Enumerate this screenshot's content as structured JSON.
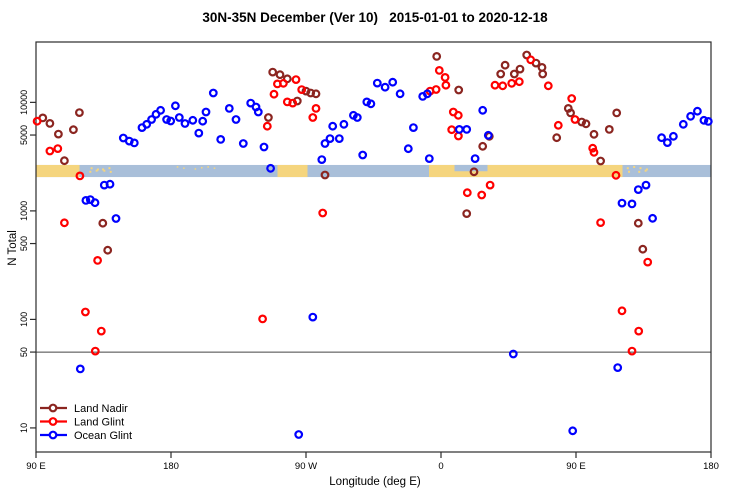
{
  "title": "30N-35N December (Ver 10)   2015-01-01 to 2020-12-18",
  "chart_data": {
    "type": "scatter",
    "title": "30N-35N December (Ver 10)   2015-01-01 to 2020-12-18",
    "xlabel": "Longitude (deg E)",
    "ylabel": "N Total",
    "x_axis": {
      "min": 90,
      "max": 540,
      "ticks": [
        90,
        180,
        270,
        360,
        450,
        540
      ],
      "tick_labels": [
        "90 E",
        "180",
        "90 W",
        "0",
        "90 E",
        "180"
      ],
      "note": "longitude axis wraps eastward: 90E - 180 - 90W - 0 - 90E - 180"
    },
    "y_axis": {
      "scale": "log",
      "min": 6,
      "max": 36000,
      "ticks": [
        10,
        50,
        100,
        500,
        1000,
        5000,
        10000
      ],
      "tick_labels": [
        "10",
        "50",
        "100",
        "500",
        "1000",
        "5000",
        "10000"
      ]
    },
    "reference_line_y": 50,
    "map_band": {
      "comment": "strip showing land(tan)/ocean(blue) vs longitude, drawn across the plot near N=2100-2650",
      "n_top": 2650,
      "n_bottom": 2050,
      "ocean_color": "#a9bfd9",
      "land_color": "#f5d57e",
      "land_segments_deg": [
        [
          90,
          119
        ],
        [
          251,
          271
        ],
        [
          352,
          481
        ]
      ],
      "mediterranean_notch_deg": [
        369,
        391
      ],
      "island_specks": [
        {
          "range": [
            123,
            142
          ],
          "density": 0.55,
          "size": 2
        },
        {
          "range": [
            183,
            215
          ],
          "density": 0.28,
          "size": 1.5
        },
        {
          "range": [
            483,
            499
          ],
          "density": 0.55,
          "size": 2
        }
      ]
    },
    "series": [
      {
        "name": "Land Nadir",
        "color": "#8b2520",
        "points": [
          [
            94.5,
            7200
          ],
          [
            99.3,
            6400
          ],
          [
            104.9,
            5100
          ],
          [
            114.9,
            5600
          ],
          [
            118.9,
            8050
          ],
          [
            108.9,
            2900
          ],
          [
            134.5,
            770
          ],
          [
            137.8,
            434
          ],
          [
            244.9,
            7250
          ],
          [
            247.8,
            19000
          ],
          [
            252.7,
            18000
          ],
          [
            257.5,
            16500
          ],
          [
            264.2,
            10300
          ],
          [
            270,
            12700
          ],
          [
            273.1,
            12200
          ],
          [
            276.7,
            12000
          ],
          [
            282.7,
            2140
          ],
          [
            357.1,
            26500
          ],
          [
            371.8,
            13000
          ],
          [
            387.8,
            3940
          ],
          [
            392.2,
            4870
          ],
          [
            382,
            2290
          ],
          [
            377.1,
            945
          ],
          [
            399.8,
            18250
          ],
          [
            402.7,
            22000
          ],
          [
            408.9,
            18250
          ],
          [
            412.7,
            20250
          ],
          [
            417.1,
            27300
          ],
          [
            423.3,
            23000
          ],
          [
            427.3,
            21000
          ],
          [
            427.8,
            18250
          ],
          [
            437.1,
            4730
          ],
          [
            444.9,
            8800
          ],
          [
            446.4,
            8000
          ],
          [
            453.8,
            6600
          ],
          [
            456.7,
            6350
          ],
          [
            462,
            5080
          ],
          [
            466.4,
            2880
          ],
          [
            472.2,
            5630
          ],
          [
            477.1,
            8000
          ],
          [
            491.5,
            770
          ],
          [
            494.5,
            444
          ]
        ]
      },
      {
        "name": "Land Glint",
        "color": "#ff0000",
        "points": [
          [
            90.7,
            6700
          ],
          [
            99.3,
            3560
          ],
          [
            104.5,
            3750
          ],
          [
            108.9,
            777
          ],
          [
            119.3,
            2100
          ],
          [
            122.9,
            117
          ],
          [
            129.5,
            51
          ],
          [
            131.1,
            350
          ],
          [
            133.5,
            78
          ],
          [
            241.1,
            101
          ],
          [
            244.2,
            6030
          ],
          [
            248.7,
            11900
          ],
          [
            250.9,
            14800
          ],
          [
            254.9,
            15000
          ],
          [
            257.5,
            10100
          ],
          [
            261.1,
            9850
          ],
          [
            263.3,
            16200
          ],
          [
            267.1,
            13100
          ],
          [
            274.5,
            7250
          ],
          [
            276.7,
            8800
          ],
          [
            281.1,
            956
          ],
          [
            352.7,
            12700
          ],
          [
            356.7,
            13150
          ],
          [
            358.9,
            19700
          ],
          [
            362.7,
            17000
          ],
          [
            363.3,
            14400
          ],
          [
            367.1,
            5600
          ],
          [
            368.2,
            8150
          ],
          [
            371.5,
            7600
          ],
          [
            371.6,
            4900
          ],
          [
            377.5,
            1470
          ],
          [
            387.1,
            1400
          ],
          [
            392.7,
            1730
          ],
          [
            396,
            14400
          ],
          [
            401.1,
            14200
          ],
          [
            407.1,
            15000
          ],
          [
            412.2,
            15500
          ],
          [
            419.8,
            24700
          ],
          [
            431.5,
            14200
          ],
          [
            438.2,
            6150
          ],
          [
            447.1,
            10850
          ],
          [
            449.3,
            6950
          ],
          [
            461.1,
            3780
          ],
          [
            462,
            3470
          ],
          [
            466.4,
            780
          ],
          [
            476.7,
            2130
          ],
          [
            480.7,
            120
          ],
          [
            487.3,
            51
          ],
          [
            491.8,
            78
          ],
          [
            497.8,
            337
          ]
        ]
      },
      {
        "name": "Ocean Glint",
        "color": "#0000ff",
        "points": [
          [
            119.5,
            35
          ],
          [
            123.3,
            1250
          ],
          [
            126.2,
            1270
          ],
          [
            129.3,
            1190
          ],
          [
            135.5,
            1730
          ],
          [
            139.3,
            1760
          ],
          [
            143.3,
            850
          ],
          [
            148.2,
            4700
          ],
          [
            152.2,
            4400
          ],
          [
            155.5,
            4230
          ],
          [
            160.7,
            5850
          ],
          [
            163.8,
            6280
          ],
          [
            167.1,
            6950
          ],
          [
            170,
            7770
          ],
          [
            173.1,
            8450
          ],
          [
            177.1,
            6950
          ],
          [
            179.8,
            6730
          ],
          [
            182.9,
            9300
          ],
          [
            185.5,
            7250
          ],
          [
            189.3,
            6380
          ],
          [
            194.5,
            6830
          ],
          [
            198.5,
            5210
          ],
          [
            201.1,
            6700
          ],
          [
            203.3,
            8150
          ],
          [
            208.2,
            12200
          ],
          [
            213.1,
            4560
          ],
          [
            218.9,
            8800
          ],
          [
            223.3,
            6950
          ],
          [
            228.2,
            4180
          ],
          [
            233.1,
            9850
          ],
          [
            236.7,
            9070
          ],
          [
            238.2,
            8150
          ],
          [
            242,
            3880
          ],
          [
            246.4,
            2470
          ],
          [
            265.1,
            8.7
          ],
          [
            274.5,
            105
          ],
          [
            280.5,
            2970
          ],
          [
            282.7,
            4180
          ],
          [
            286,
            4640
          ],
          [
            287.8,
            6030
          ],
          [
            292.2,
            4640
          ],
          [
            295.3,
            6280
          ],
          [
            301.6,
            7600
          ],
          [
            304.2,
            7250
          ],
          [
            307.8,
            3270
          ],
          [
            310.5,
            10100
          ],
          [
            313.3,
            9700
          ],
          [
            317.5,
            15050
          ],
          [
            322.7,
            13800
          ],
          [
            327.8,
            15350
          ],
          [
            332.7,
            12000
          ],
          [
            338.2,
            3740
          ],
          [
            341.6,
            5850
          ],
          [
            347.8,
            11350
          ],
          [
            350.9,
            12000
          ],
          [
            352.2,
            3030
          ],
          [
            372.2,
            5630
          ],
          [
            377.1,
            5630
          ],
          [
            382.7,
            3030
          ],
          [
            387.8,
            8450
          ],
          [
            391.5,
            4970
          ],
          [
            408.2,
            48
          ],
          [
            447.8,
            9.4
          ],
          [
            477.8,
            36
          ],
          [
            480.7,
            1180
          ],
          [
            487.3,
            1160
          ],
          [
            491.5,
            1570
          ],
          [
            496.7,
            1730
          ],
          [
            501.1,
            855
          ],
          [
            507.1,
            4730
          ],
          [
            510.9,
            4260
          ],
          [
            514.9,
            4870
          ],
          [
            521.5,
            6280
          ],
          [
            526.4,
            7440
          ],
          [
            530.9,
            8300
          ],
          [
            535.3,
            6830
          ],
          [
            538.2,
            6680
          ]
        ]
      }
    ],
    "legend": {
      "position": "bottom-left",
      "items": [
        {
          "label": "Land Nadir",
          "color": "#8b2520"
        },
        {
          "label": "Land Glint",
          "color": "#ff0000"
        },
        {
          "label": "Ocean Glint",
          "color": "#0000ff"
        }
      ]
    }
  }
}
